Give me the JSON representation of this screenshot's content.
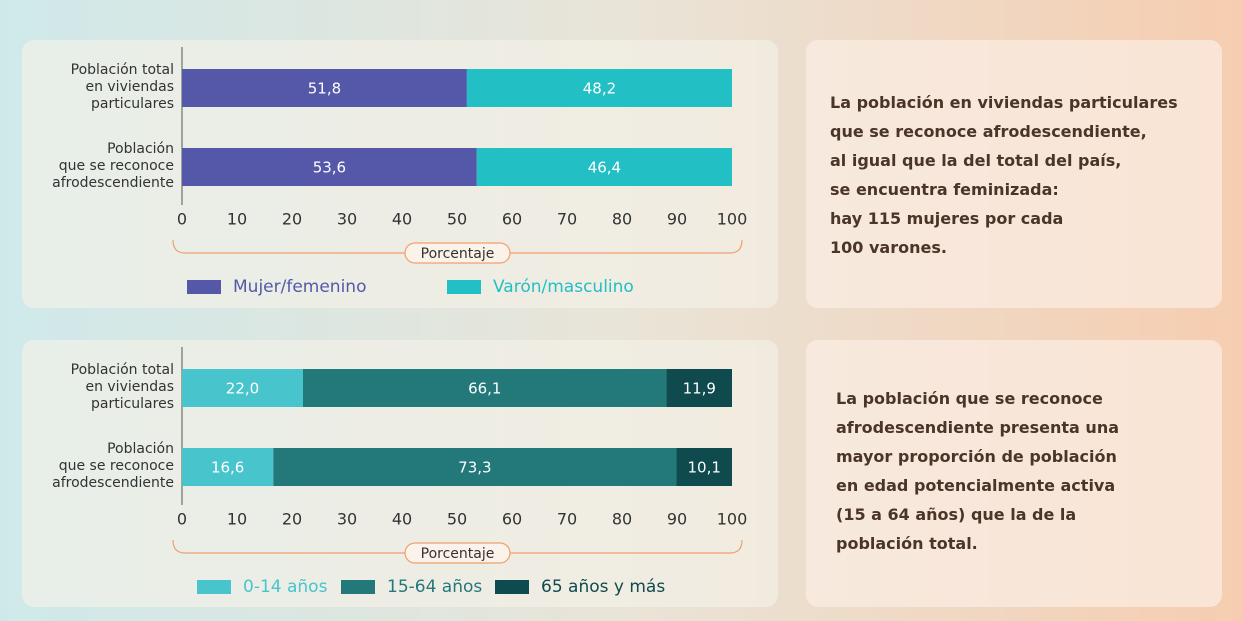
{
  "chart_data": [
    {
      "type": "bar",
      "orientation": "horizontal",
      "stacked": true,
      "categories": [
        "Población total\nen viviendas\nparticulares",
        "Población\nque se reconoce\nafrodescendiente"
      ],
      "series": [
        {
          "name": "Mujer/femenino",
          "color": "#5558a8",
          "values": [
            51.8,
            53.6
          ],
          "value_labels": [
            "51,8",
            "53,6"
          ]
        },
        {
          "name": "Varón/masculino",
          "color": "#22bfc4",
          "values": [
            48.2,
            46.4
          ],
          "value_labels": [
            "48,2",
            "46,4"
          ]
        }
      ],
      "xlim": [
        0,
        100
      ],
      "xticks": [
        0,
        10,
        20,
        30,
        40,
        50,
        60,
        70,
        80,
        90,
        100
      ],
      "xlabel": "Porcentaje",
      "annotation": "La población en viviendas particulares\nque se reconoce afrodescendiente,\nal igual que la del total del país,\nse encuentra feminizada:\nhay 115 mujeres por cada\n100 varones."
    },
    {
      "type": "bar",
      "orientation": "horizontal",
      "stacked": true,
      "categories": [
        "Población total\nen viviendas\nparticulares",
        "Población\nque se reconoce\nafrodescendiente"
      ],
      "series": [
        {
          "name": "0-14 años",
          "color": "#47c4cc",
          "values": [
            22.0,
            16.6
          ],
          "value_labels": [
            "22,0",
            "16,6"
          ]
        },
        {
          "name": "15-64 años",
          "color": "#23787a",
          "values": [
            66.1,
            73.3
          ],
          "value_labels": [
            "66,1",
            "73,3"
          ]
        },
        {
          "name": "65 años y más",
          "color": "#0f4a4f",
          "values": [
            11.9,
            10.1
          ],
          "value_labels": [
            "11,9",
            "10,1"
          ]
        }
      ],
      "xlim": [
        0,
        100
      ],
      "xticks": [
        0,
        10,
        20,
        30,
        40,
        50,
        60,
        70,
        80,
        90,
        100
      ],
      "xlabel": "Porcentaje",
      "annotation": "La población que se reconoce\nafrodescendiente presenta una\nmayor proporción de población\nen edad potencialmente activa\n(15 a 64 años) que la de la\npoblación total."
    }
  ]
}
